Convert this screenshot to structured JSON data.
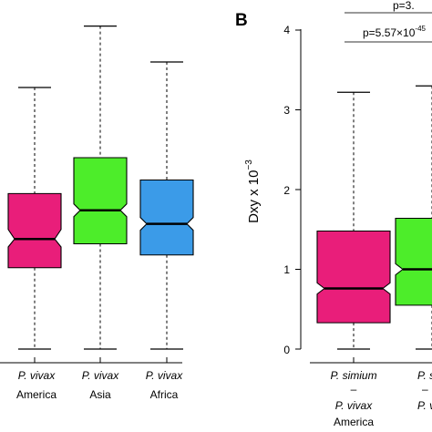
{
  "chart_data": [
    {
      "type": "box",
      "notched": true,
      "categories": [
        {
          "line1": "P. vivax",
          "line2": "America"
        },
        {
          "line1": "P. vivax",
          "line2": "Asia"
        },
        {
          "line1": "P. vivax",
          "line2": "Africa"
        }
      ],
      "y_axis_range": [
        0,
        4
      ],
      "boxes": [
        {
          "whisker_low": 0.0,
          "q1": 1.02,
          "median": 1.38,
          "q3": 1.95,
          "whisker_high": 3.28,
          "notch_low": 1.28,
          "notch_high": 1.5,
          "color": "#e91e7a"
        },
        {
          "whisker_low": 0.0,
          "q1": 1.32,
          "median": 1.74,
          "q3": 2.4,
          "whisker_high": 4.05,
          "notch_low": 1.66,
          "notch_high": 1.82,
          "color": "#4ded2a"
        },
        {
          "whisker_low": 0.0,
          "q1": 1.18,
          "median": 1.57,
          "q3": 2.12,
          "whisker_high": 3.6,
          "notch_low": 1.49,
          "notch_high": 1.65,
          "color": "#3b9be8"
        }
      ]
    },
    {
      "type": "box",
      "notched": true,
      "panel_label": "B",
      "ylabel": "Dxy x 10",
      "ylabel_exponent": "−3",
      "yticks": [
        "0",
        "1",
        "2",
        "3",
        "4"
      ],
      "y_axis_range": [
        0,
        4
      ],
      "categories": [
        {
          "line1": "P. simium",
          "line2": "–",
          "line3": "P. vivax",
          "line4": "America"
        },
        {
          "line1": "P. s",
          "line2": "–",
          "line3": "P. v",
          "line4": ""
        }
      ],
      "boxes": [
        {
          "whisker_low": 0.0,
          "q1": 0.33,
          "median": 0.76,
          "q3": 1.48,
          "whisker_high": 3.22,
          "notch_low": 0.69,
          "notch_high": 0.83,
          "color": "#e91e7a"
        },
        {
          "whisker_low": 0.0,
          "q1": 0.55,
          "median": 1.0,
          "q3": 1.64,
          "whisker_high": 3.3,
          "notch_low": 0.93,
          "notch_high": 1.07,
          "color": "#4ded2a"
        }
      ],
      "annotations": [
        {
          "text": "p=3.",
          "level": 1
        },
        {
          "text": "p=5.57×10",
          "exponent": "-45",
          "level": 2
        }
      ]
    }
  ]
}
